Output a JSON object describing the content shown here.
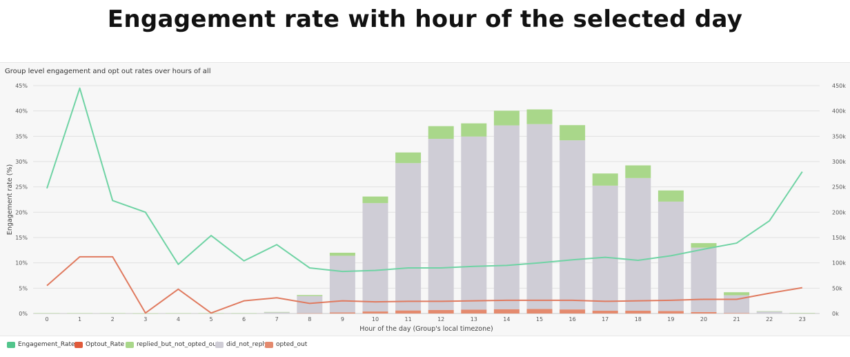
{
  "title": "Engagement rate with hour of the selected day",
  "subtitle": "Group level engagement and opt out rates over hours of all",
  "chart_data": {
    "type": "bar",
    "stacked": true,
    "xlabel": "Hour of the day (Group's local timezone)",
    "ylabel": "Engagement rate (%)",
    "y_left_ticks": [
      "0%",
      "5%",
      "10%",
      "15%",
      "20%",
      "25%",
      "30%",
      "35%",
      "40%",
      "45%"
    ],
    "y_right_ticks": [
      "0k",
      "50k",
      "100k",
      "150k",
      "200k",
      "250k",
      "300k",
      "350k",
      "400k",
      "450k"
    ],
    "ylim_left": [
      0,
      45
    ],
    "ylim_right": [
      0,
      450000
    ],
    "grid": true,
    "legend_position": "bottom-left",
    "categories": [
      "0",
      "1",
      "2",
      "3",
      "4",
      "5",
      "6",
      "7",
      "8",
      "9",
      "10",
      "11",
      "12",
      "13",
      "14",
      "15",
      "16",
      "17",
      "18",
      "19",
      "20",
      "21",
      "22",
      "23"
    ],
    "bar_series": [
      {
        "name": "opted_out",
        "color": "#e48a6e",
        "values": [
          0,
          0,
          0,
          0,
          0,
          0,
          0,
          0,
          500,
          2000,
          4000,
          6000,
          7000,
          7500,
          8500,
          9000,
          8000,
          5500,
          5500,
          5000,
          3000,
          1000,
          0,
          0
        ]
      },
      {
        "name": "did_not_reply",
        "color": "#cfcdd6",
        "values": [
          300,
          300,
          300,
          200,
          200,
          500,
          300,
          2500,
          34000,
          112000,
          214000,
          291000,
          338000,
          342000,
          363000,
          365000,
          334000,
          247000,
          262000,
          216000,
          127000,
          35000,
          4000,
          800
        ]
      },
      {
        "name": "replied_but_not_opted_out",
        "color": "#a9d78a",
        "values": [
          400,
          400,
          400,
          100,
          400,
          200,
          200,
          500,
          2000,
          6000,
          13000,
          21000,
          25000,
          26000,
          29000,
          29000,
          30000,
          24000,
          25000,
          22000,
          9000,
          6000,
          500,
          200
        ]
      }
    ],
    "line_series": [
      {
        "name": "Engagement_Rate",
        "color": "#6fd3a4",
        "values": [
          24.7,
          44.5,
          22.3,
          20.0,
          9.7,
          15.4,
          10.4,
          13.6,
          9.0,
          8.3,
          8.5,
          9.0,
          9.0,
          9.3,
          9.5,
          10.0,
          10.6,
          11.1,
          10.5,
          11.4,
          12.7,
          13.9,
          18.3,
          28.0
        ]
      },
      {
        "name": "Optout_Rate",
        "color": "#e07a5f",
        "values": [
          5.5,
          11.2,
          11.2,
          0.1,
          4.8,
          0.1,
          2.5,
          3.1,
          2.0,
          2.5,
          2.3,
          2.4,
          2.4,
          2.5,
          2.6,
          2.6,
          2.6,
          2.4,
          2.5,
          2.6,
          2.8,
          2.8,
          4.0,
          5.1
        ]
      }
    ],
    "legend": [
      {
        "label": "Engagement_Rate",
        "color": "#52c58c"
      },
      {
        "label": "Optout_Rate",
        "color": "#e05a3a"
      },
      {
        "label": "replied_but_not_opted_out",
        "color": "#a9d78a"
      },
      {
        "label": "did_not_reply",
        "color": "#cfcdd6"
      },
      {
        "label": "opted_out",
        "color": "#e48a6e"
      }
    ]
  }
}
